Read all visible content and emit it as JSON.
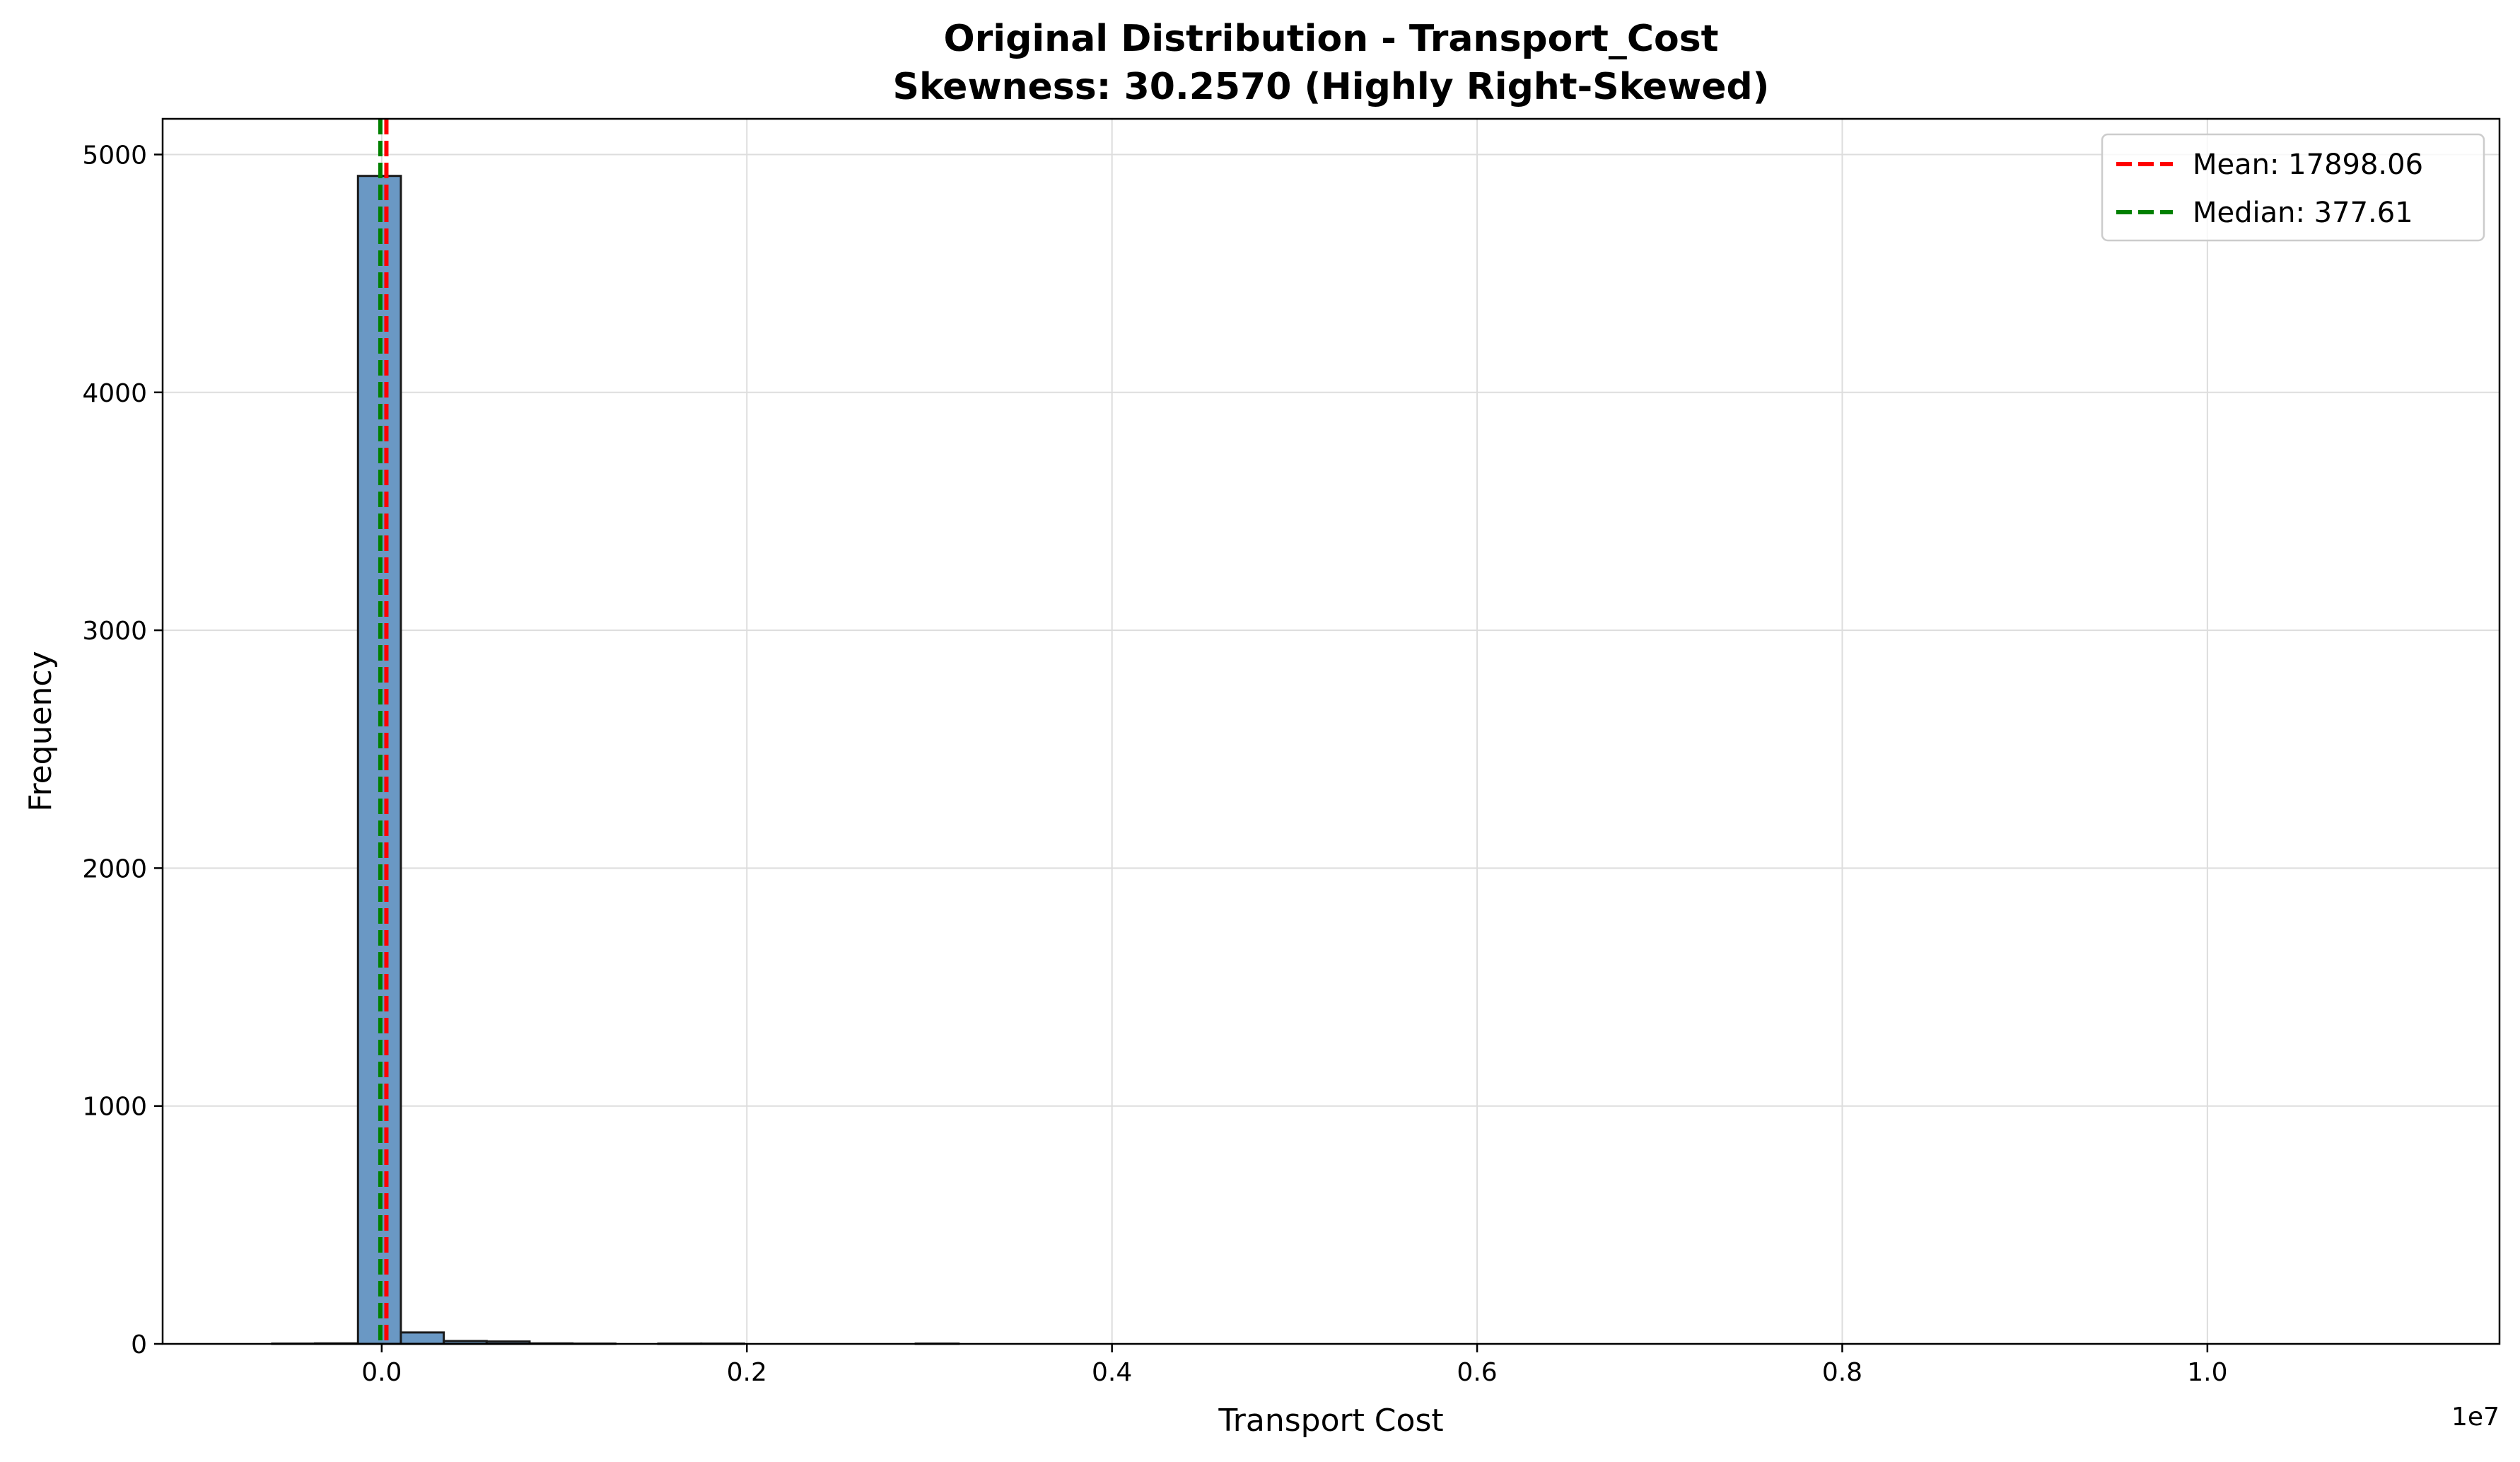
{
  "chart_data": {
    "type": "bar",
    "title_line1": "Original Distribution - Transport_Cost",
    "title_line2": "Skewness: 30.2570 (Highly Right-Skewed)",
    "xlabel": "Transport Cost",
    "ylabel": "Frequency",
    "x_offset_label": "1e7",
    "xlim": [
      -1200000,
      11600000
    ],
    "ylim": [
      0,
      5150
    ],
    "x_ticks": [
      0,
      2000000,
      4000000,
      6000000,
      8000000,
      10000000
    ],
    "x_tick_labels": [
      "0.0",
      "0.2",
      "0.4",
      "0.6",
      "0.8",
      "1.0"
    ],
    "y_ticks": [
      0,
      1000,
      2000,
      3000,
      4000,
      5000
    ],
    "y_tick_labels": [
      "0",
      "1000",
      "2000",
      "3000",
      "4000",
      "5000"
    ],
    "grid": true,
    "legend_position": "top-right",
    "bin_start": -600000,
    "bin_width": 235000,
    "bin_counts": [
      1,
      2,
      4910,
      48,
      12,
      10,
      2,
      1,
      0,
      1,
      1,
      0,
      0,
      0,
      0,
      1
    ],
    "bar_color": "#6a98c4",
    "bar_edge_color": "#1a1a1a",
    "series": [
      {
        "name": "Mean: 17898.06",
        "value": 17898.06,
        "color": "#ff0000"
      },
      {
        "name": "Median: 377.61",
        "value": 377.61,
        "color": "#008000"
      }
    ]
  }
}
